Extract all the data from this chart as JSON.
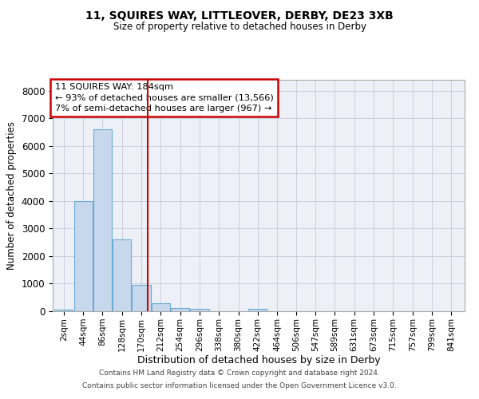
{
  "title": "11, SQUIRES WAY, LITTLEOVER, DERBY, DE23 3XB",
  "subtitle": "Size of property relative to detached houses in Derby",
  "xlabel": "Distribution of detached houses by size in Derby",
  "ylabel": "Number of detached properties",
  "footer1": "Contains HM Land Registry data © Crown copyright and database right 2024.",
  "footer2": "Contains public sector information licensed under the Open Government Licence v3.0.",
  "bar_labels": [
    "2sqm",
    "44sqm",
    "86sqm",
    "128sqm",
    "170sqm",
    "212sqm",
    "254sqm",
    "296sqm",
    "338sqm",
    "380sqm",
    "422sqm",
    "464sqm",
    "506sqm",
    "547sqm",
    "589sqm",
    "631sqm",
    "673sqm",
    "715sqm",
    "757sqm",
    "799sqm",
    "841sqm"
  ],
  "bar_values": [
    50,
    4000,
    6600,
    2600,
    950,
    300,
    130,
    100,
    0,
    0,
    80,
    0,
    0,
    0,
    0,
    0,
    0,
    0,
    0,
    0,
    0
  ],
  "bar_color": "#c8d8ec",
  "bar_edge_color": "#6aaad4",
  "ylim": [
    0,
    8400
  ],
  "yticks": [
    0,
    1000,
    2000,
    3000,
    4000,
    5000,
    6000,
    7000,
    8000
  ],
  "property_line_color": "#cc0000",
  "annotation_title": "11 SQUIRES WAY: 184sqm",
  "annotation_line1": "← 93% of detached houses are smaller (13,566)",
  "annotation_line2": "7% of semi-detached houses are larger (967) →",
  "annotation_box_color": "#cc0000",
  "grid_color": "#c8c8d8",
  "bg_color": "#edf1f7"
}
